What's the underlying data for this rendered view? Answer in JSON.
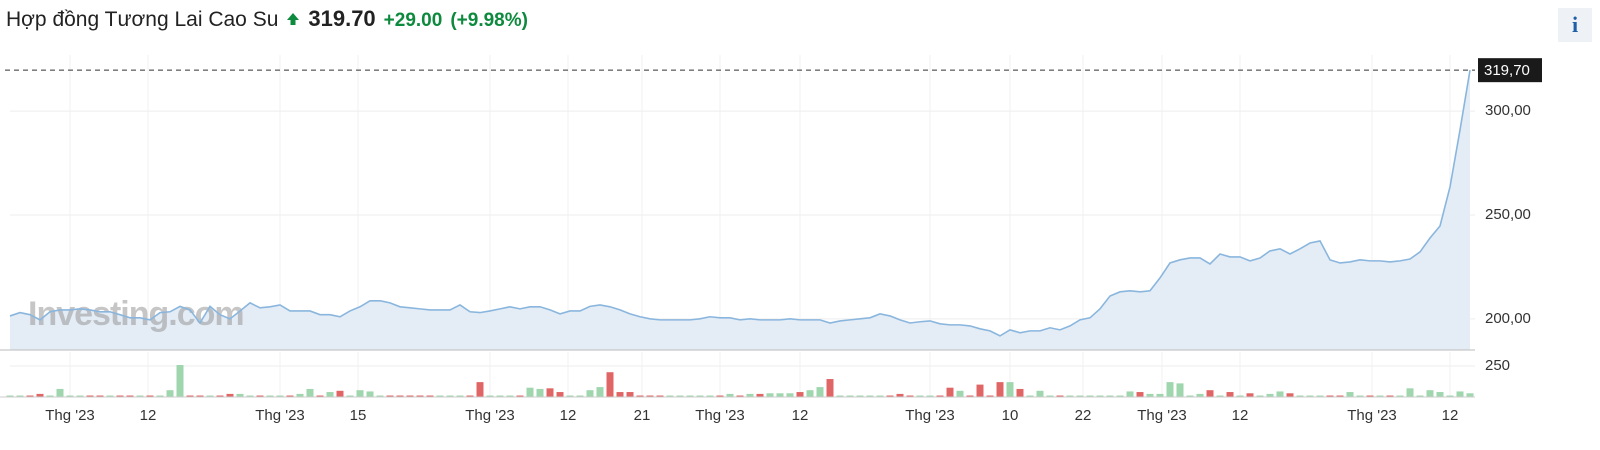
{
  "header": {
    "title": "Hợp đồng Tương Lai Cao Su",
    "price": "319.70",
    "change": "+29.00",
    "change_pct": "(+9.98%)",
    "info_icon": "i"
  },
  "chart_data": [
    {
      "type": "area",
      "color": "#8ab6de",
      "fill": "#e4edf6",
      "watermark": "Investing.com",
      "xlim": [
        0,
        146
      ],
      "xticks": [
        {
          "value": 6,
          "label": "Thg '23"
        },
        {
          "value": 13.8,
          "label": "12"
        },
        {
          "value": 27,
          "label": "Thg '23"
        },
        {
          "value": 34.8,
          "label": "15"
        },
        {
          "value": 48,
          "label": "Thg '23"
        },
        {
          "value": 55.8,
          "label": "12"
        },
        {
          "value": 63.2,
          "label": "21"
        },
        {
          "value": 71,
          "label": "Thg '23"
        },
        {
          "value": 79,
          "label": "12"
        },
        {
          "value": 92,
          "label": "Thg '23"
        },
        {
          "value": 100,
          "label": "10"
        },
        {
          "value": 107.3,
          "label": "22"
        },
        {
          "value": 115.2,
          "label": "Thg '23"
        },
        {
          "value": 123,
          "label": "12"
        },
        {
          "value": 136.2,
          "label": "Thg '23"
        },
        {
          "value": 144,
          "label": "12"
        }
      ],
      "ylim": [
        185,
        327
      ],
      "yticks": [
        {
          "value": 200,
          "label": "200,00"
        },
        {
          "value": 250,
          "label": "250,00"
        },
        {
          "value": 300,
          "label": "300,00"
        }
      ],
      "last_price": {
        "value": 319.7,
        "label": "319,70"
      },
      "values": [
        201.4,
        203,
        202,
        199.5,
        203.4,
        204.3,
        204.3,
        204.8,
        204.3,
        203.4,
        203.4,
        202,
        200.5,
        200.5,
        199.5,
        203,
        203.4,
        206,
        204.3,
        198,
        206,
        202,
        200,
        203.8,
        207.7,
        205.3,
        205.8,
        206.7,
        203.8,
        203.8,
        203.8,
        202,
        202,
        201,
        203.8,
        205.8,
        208.7,
        208.7,
        207.7,
        205.8,
        205.3,
        204.8,
        204.3,
        204.3,
        204.3,
        206.7,
        203.4,
        203,
        203.8,
        204.8,
        205.8,
        204.8,
        205.8,
        205.8,
        204.3,
        202.4,
        203.8,
        203.8,
        206,
        206.7,
        205.8,
        204.3,
        202.4,
        201,
        200,
        199.5,
        199.5,
        199.5,
        199.5,
        200,
        201,
        200.5,
        200.5,
        199.5,
        200,
        199.5,
        199.5,
        199.5,
        200,
        199.5,
        199.5,
        199.5,
        198,
        199,
        199.5,
        200,
        200.5,
        202.4,
        201.4,
        199.5,
        198,
        198.6,
        199,
        197.6,
        197.1,
        197.1,
        196.6,
        195.2,
        194.2,
        191.8,
        194.7,
        193.3,
        194.2,
        194.2,
        195.7,
        194.7,
        196.6,
        199.5,
        200.5,
        204.8,
        211,
        213,
        213.5,
        213,
        213.5,
        219.7,
        226.9,
        228.4,
        229.3,
        229.3,
        226.4,
        231.2,
        229.8,
        229.8,
        227.9,
        229.3,
        232.7,
        233.7,
        231.2,
        233.7,
        236.5,
        237.5,
        228.4,
        226.9,
        227.4,
        228.4,
        227.9,
        227.9,
        227.4,
        227.9,
        228.8,
        232.2,
        238.9,
        244.7,
        263.5,
        290.9,
        319.7
      ]
    },
    {
      "type": "bar",
      "up_color": "#9fd6ae",
      "down_color": "#e06666",
      "xlim": [
        0,
        146
      ],
      "ylim": [
        0,
        363
      ],
      "yticks": [
        250
      ],
      "values": [
        12,
        12,
        12,
        25,
        12,
        65,
        12,
        12,
        12,
        12,
        12,
        12,
        12,
        12,
        12,
        12,
        55,
        258,
        12,
        12,
        12,
        12,
        25,
        25,
        12,
        12,
        12,
        12,
        12,
        25,
        65,
        12,
        40,
        50,
        12,
        55,
        45,
        12,
        12,
        12,
        12,
        12,
        12,
        12,
        12,
        12,
        12,
        120,
        12,
        12,
        12,
        12,
        75,
        65,
        70,
        40,
        12,
        12,
        55,
        80,
        200,
        40,
        40,
        12,
        12,
        12,
        12,
        12,
        12,
        12,
        12,
        12,
        25,
        12,
        25,
        25,
        30,
        30,
        30,
        40,
        55,
        80,
        145,
        12,
        12,
        12,
        12,
        12,
        12,
        25,
        12,
        12,
        12,
        12,
        75,
        50,
        12,
        100,
        12,
        120,
        120,
        65,
        12,
        50,
        12,
        12,
        12,
        12,
        12,
        12,
        12,
        12,
        45,
        40,
        25,
        25,
        120,
        110,
        12,
        25,
        55,
        12,
        40,
        12,
        30,
        12,
        25,
        45,
        30,
        12,
        12,
        12,
        12,
        12,
        40,
        12,
        12,
        12,
        12,
        12,
        70,
        12,
        55,
        40,
        12,
        45,
        30
      ]
    }
  ]
}
